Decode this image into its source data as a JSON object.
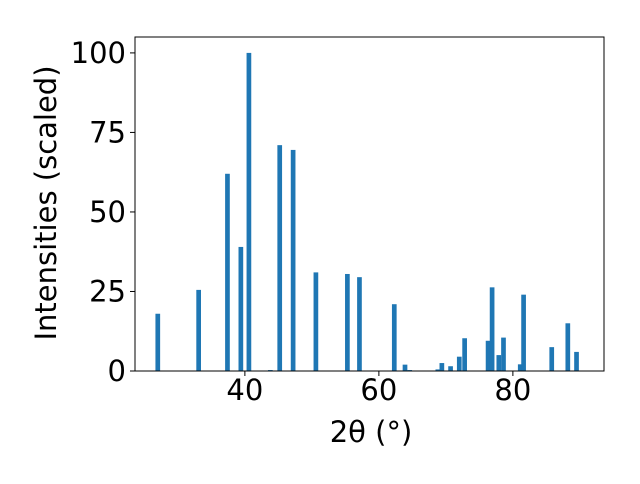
{
  "chart_data": {
    "type": "bar",
    "xlabel": "2θ (°)",
    "ylabel": "Intensities (scaled)",
    "xlim": [
      23.6,
      93.6
    ],
    "ylim": [
      0,
      105
    ],
    "xticks": [
      {
        "value": 40,
        "label": "40"
      },
      {
        "value": 60,
        "label": "60"
      },
      {
        "value": 80,
        "label": "80"
      }
    ],
    "yticks": [
      {
        "value": 0,
        "label": "0"
      },
      {
        "value": 25,
        "label": "25"
      },
      {
        "value": 50,
        "label": "50"
      },
      {
        "value": 75,
        "label": "75"
      },
      {
        "value": 100,
        "label": "100"
      }
    ],
    "grid": false,
    "bar_color": "#1f77b4",
    "bar_width": 0.7,
    "x": [
      27.0,
      33.1,
      37.4,
      39.4,
      40.6,
      43.8,
      45.2,
      47.2,
      50.6,
      55.3,
      57.1,
      62.3,
      63.9,
      64.6,
      68.8,
      69.4,
      70.7,
      72.0,
      72.8,
      76.3,
      76.9,
      77.9,
      78.6,
      81.1,
      81.6,
      85.8,
      88.2,
      89.5
    ],
    "values": [
      18,
      25.5,
      62,
      39,
      100,
      0.3,
      71,
      69.5,
      31,
      30.5,
      29.5,
      21,
      2,
      0.3,
      0.5,
      2.5,
      1.5,
      4.5,
      10.3,
      9.5,
      26.3,
      5,
      10.5,
      2.1,
      24,
      7.5,
      15,
      6
    ]
  }
}
